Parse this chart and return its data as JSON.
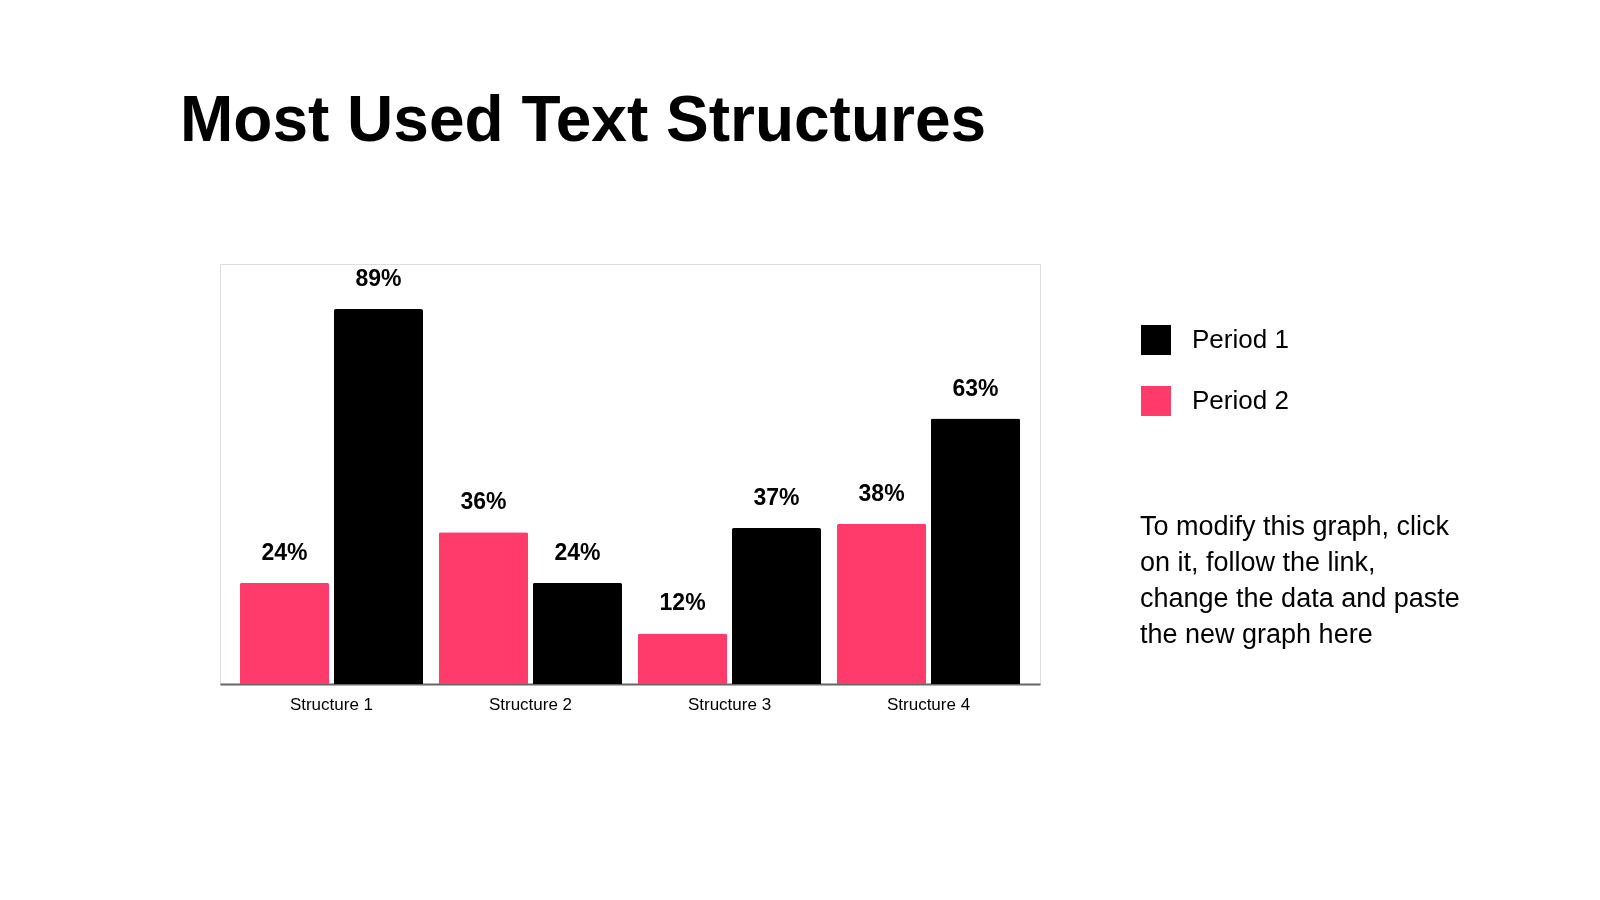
{
  "chart_data": {
    "type": "bar",
    "title": "Most Used Text Structures",
    "categories": [
      "Structure 1",
      "Structure 2",
      "Structure 3",
      "Structure 4"
    ],
    "series": [
      {
        "name": "Period 2",
        "color": "#ff3b6b",
        "values": [
          24,
          36,
          12,
          38
        ],
        "value_labels": [
          "24%",
          "36%",
          "12%",
          "38%"
        ]
      },
      {
        "name": "Period 1",
        "color": "#000000",
        "values": [
          89,
          24,
          37,
          63
        ],
        "value_labels": [
          "89%",
          "24%",
          "37%",
          "63%"
        ]
      }
    ],
    "legend": "right",
    "grid": false,
    "annotations": [
      "To modify this graph, click\non it, follow the link,\nchange the data and paste\nthe new graph here"
    ]
  }
}
